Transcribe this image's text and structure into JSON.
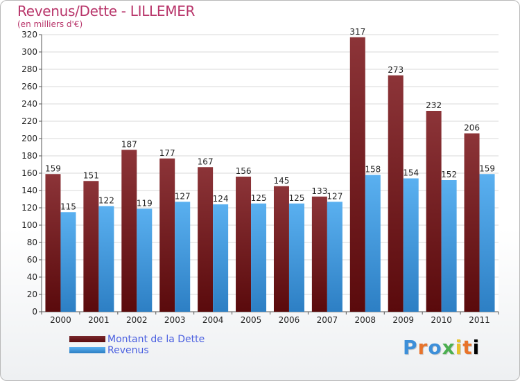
{
  "chart_data": {
    "type": "bar",
    "title": "Revenus/Dette - LILLEMER",
    "subtitle": "(en milliers d'€)",
    "categories": [
      "2000",
      "2001",
      "2002",
      "2003",
      "2004",
      "2005",
      "2006",
      "2007",
      "2008",
      "2009",
      "2010",
      "2011"
    ],
    "series": [
      {
        "name": "Montant de la Dette",
        "values": [
          159,
          151,
          187,
          177,
          167,
          156,
          145,
          133,
          317,
          273,
          232,
          206
        ],
        "color": "#7a2a2e"
      },
      {
        "name": "Revenus",
        "values": [
          115,
          122,
          119,
          127,
          124,
          125,
          125,
          127,
          158,
          154,
          152,
          159
        ],
        "color": "#4aa3e8"
      }
    ],
    "ylim": [
      0,
      320
    ],
    "yticks": [
      0,
      20,
      40,
      60,
      80,
      100,
      120,
      140,
      160,
      180,
      200,
      220,
      240,
      260,
      280,
      300,
      320
    ],
    "grid": true,
    "legend_position": "bottom-left"
  },
  "logo_text": "Proxiti"
}
